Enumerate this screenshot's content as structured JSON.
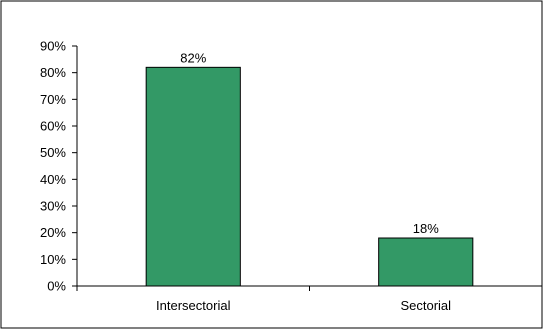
{
  "chart_data": {
    "type": "bar",
    "categories": [
      "Intersectorial",
      "Sectorial"
    ],
    "values": [
      82,
      18
    ],
    "data_labels": [
      "82%",
      "18%"
    ],
    "title": "",
    "xlabel": "",
    "ylabel": "",
    "ylim": [
      0,
      90
    ],
    "y_ticks": [
      0,
      10,
      20,
      30,
      40,
      50,
      60,
      70,
      80,
      90
    ],
    "y_tick_labels": [
      "0%",
      "10%",
      "20%",
      "30%",
      "40%",
      "50%",
      "60%",
      "70%",
      "80%",
      "90%"
    ],
    "bar_color": "#339966",
    "bar_border_color": "#000000",
    "grid": false,
    "legend": "none"
  }
}
